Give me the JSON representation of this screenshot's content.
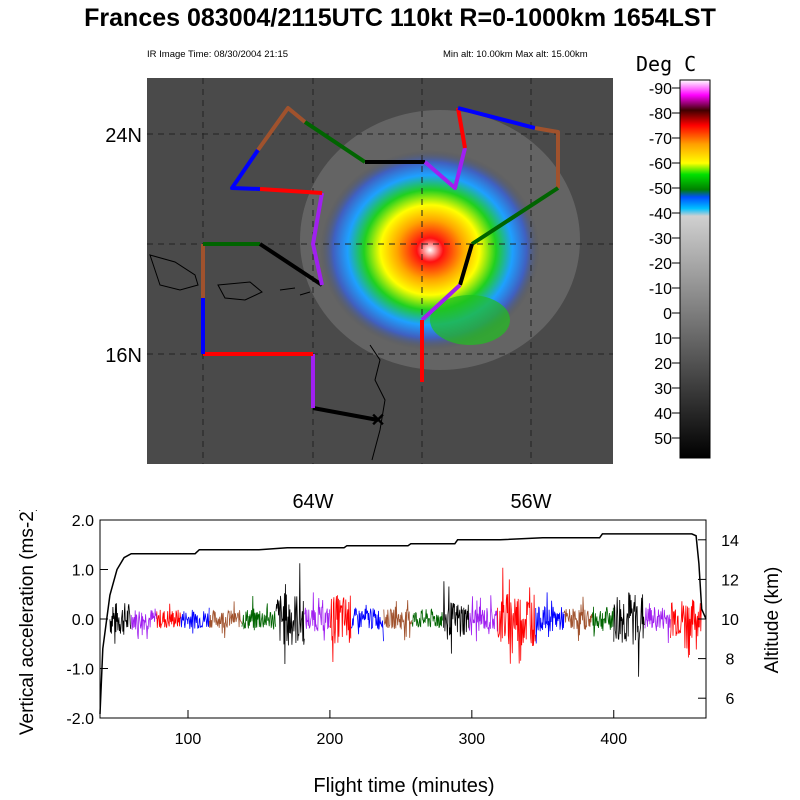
{
  "title": "Frances 083004/2115UTC 110kt  R=0-1000km 1654LST",
  "ir_image_time": "IR Image Time: 08/30/2004 21:15",
  "altitude_range": "Min alt: 10.00km  Max alt: 15.00km",
  "colors": {
    "black": "#000000",
    "purple": "#a020f0",
    "red": "#ff0000",
    "blue": "#0000ff",
    "brown": "#a0522d",
    "green": "#006400"
  },
  "map": {
    "lat_labels": [
      "24N",
      "16N"
    ],
    "lon_labels": [
      "64W",
      "56W"
    ],
    "colorbar": {
      "title": "Deg C",
      "labels": [
        "-90",
        "-80",
        "-70",
        "-60",
        "-50",
        "-40",
        "-30",
        "-20",
        "-10",
        "0",
        "10",
        "20",
        "30",
        "40",
        "50"
      ]
    },
    "track_icon": "x-marker-icon"
  },
  "chart_data": {
    "type": "line",
    "xlabel": "Flight time (minutes)",
    "ylabel": "Vertical acceleration (ms-2)",
    "ylabel_right": "Altitude (km)",
    "xlim": [
      38,
      465
    ],
    "ylim": [
      -2.0,
      2.0
    ],
    "ylim_right": [
      5.0,
      15.0
    ],
    "x_ticks": [
      "100",
      "200",
      "300",
      "400"
    ],
    "y_ticks": [
      "2.0",
      "1.0",
      "0.0",
      "-1.0",
      "-2.0"
    ],
    "y_ticks_right": [
      "14",
      "12",
      "10",
      "8",
      "6"
    ],
    "altitude_series": {
      "x": [
        38,
        40,
        45,
        50,
        55,
        60,
        105,
        108,
        150,
        170,
        210,
        212,
        255,
        257,
        288,
        290,
        320,
        350,
        390,
        392,
        420,
        455,
        458,
        460,
        462,
        465
      ],
      "y": [
        5.2,
        8.5,
        11.2,
        12.5,
        13.1,
        13.3,
        13.3,
        13.5,
        13.5,
        13.6,
        13.6,
        13.7,
        13.7,
        13.8,
        13.8,
        14.0,
        14.0,
        14.1,
        14.1,
        14.3,
        14.3,
        14.3,
        14.2,
        12.8,
        10.5,
        10.0
      ]
    },
    "acceleration_segments": [
      {
        "color": "black",
        "x": [
          45,
          60
        ],
        "amp": 0.35
      },
      {
        "color": "purple",
        "x": [
          60,
          78
        ],
        "amp": 0.22
      },
      {
        "color": "red",
        "x": [
          78,
          95
        ],
        "amp": 0.2
      },
      {
        "color": "blue",
        "x": [
          95,
          115
        ],
        "amp": 0.2
      },
      {
        "color": "brown",
        "x": [
          115,
          138
        ],
        "amp": 0.18
      },
      {
        "color": "green",
        "x": [
          138,
          162
        ],
        "amp": 0.22
      },
      {
        "color": "black",
        "x": [
          162,
          182
        ],
        "amp": 0.55
      },
      {
        "color": "purple",
        "x": [
          182,
          200
        ],
        "amp": 0.25
      },
      {
        "color": "red",
        "x": [
          200,
          215
        ],
        "amp": 0.5
      },
      {
        "color": "blue",
        "x": [
          215,
          238
        ],
        "amp": 0.22
      },
      {
        "color": "brown",
        "x": [
          238,
          258
        ],
        "amp": 0.2
      },
      {
        "color": "green",
        "x": [
          258,
          280
        ],
        "amp": 0.2
      },
      {
        "color": "black",
        "x": [
          280,
          298
        ],
        "amp": 0.35
      },
      {
        "color": "purple",
        "x": [
          298,
          318
        ],
        "amp": 0.25
      },
      {
        "color": "red",
        "x": [
          318,
          345
        ],
        "amp": 0.55
      },
      {
        "color": "blue",
        "x": [
          345,
          365
        ],
        "amp": 0.25
      },
      {
        "color": "brown",
        "x": [
          365,
          385
        ],
        "amp": 0.22
      },
      {
        "color": "green",
        "x": [
          385,
          400
        ],
        "amp": 0.25
      },
      {
        "color": "black",
        "x": [
          400,
          422
        ],
        "amp": 0.55
      },
      {
        "color": "purple",
        "x": [
          422,
          440
        ],
        "amp": 0.25
      },
      {
        "color": "red",
        "x": [
          440,
          462
        ],
        "amp": 0.4
      }
    ]
  }
}
